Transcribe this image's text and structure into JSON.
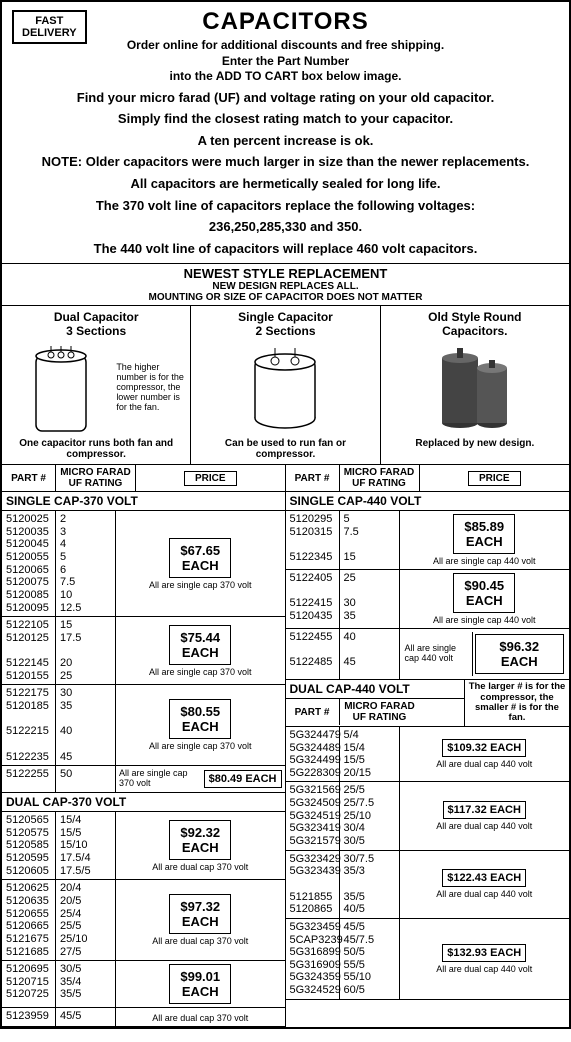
{
  "fast_box": {
    "l1": "FAST",
    "l2": "DELIVERY"
  },
  "title": "CAPACITORS",
  "sub1": "Order online for additional discounts and free shipping.",
  "sub2": "Enter the Part Number",
  "sub3": "into the ADD TO CART box below image.",
  "info1": "Find your micro farad (UF) and voltage rating on your old capacitor.",
  "info2": "Simply find the closest rating match to your capacitor.",
  "info3": "A ten percent increase is ok.",
  "info4": "NOTE: Older capacitors were much larger in size than the newer replacements.",
  "info5": "All capacitors are hermetically sealed for long life.",
  "info6": "The 370 volt line of capacitors replace the following voltages:",
  "info7": "236,250,285,330 and 350.",
  "info8": "The 440 volt line of capacitors will replace 460 volt capacitors.",
  "replace": {
    "t1": "NEWEST STYLE REPLACEMENT",
    "t2": "NEW DESIGN REPLACES ALL.",
    "t3": "MOUNTING OR SIZE OF CAPACITOR DOES NOT MATTER"
  },
  "illus": {
    "dual": {
      "title1": "Dual Capacitor",
      "title2": "3 Sections",
      "note": "The higher number is for the compressor, the lower number is for the fan.",
      "foot": "One capacitor runs both fan and compressor."
    },
    "single": {
      "title1": "Single Capacitor",
      "title2": "2 Sections",
      "foot": "Can be used to run fan or compressor."
    },
    "old": {
      "title1": "Old Style Round",
      "title2": "Capacitors.",
      "foot": "Replaced by new design."
    }
  },
  "headers": {
    "part": "PART #",
    "uf": "MICRO FARAD UF RATING",
    "price": "PRICE"
  },
  "left": {
    "sect1": {
      "title": "SINGLE CAP-370 VOLT",
      "groups": [
        {
          "parts": [
            "5120025",
            "5120035",
            "5120045",
            "5120055",
            "5120065",
            "5120075",
            "5120085",
            "5120095"
          ],
          "ufs": [
            "2",
            "3",
            "4",
            "5",
            "6",
            "7.5",
            "10",
            "12.5"
          ],
          "price": "$67.65",
          "unit": "EACH",
          "note": "All are single cap 370 volt"
        },
        {
          "parts": [
            "5122105",
            "5120125",
            "",
            "5122145",
            "5120155"
          ],
          "ufs": [
            "15",
            "17.5",
            "",
            "20",
            "25"
          ],
          "price": "$75.44",
          "unit": "EACH",
          "note": "All are single cap 370 volt"
        },
        {
          "parts": [
            "5122175",
            "5120185",
            "",
            "5122215",
            "",
            "5122235"
          ],
          "ufs": [
            "30",
            "35",
            "",
            "40",
            "",
            "45"
          ],
          "price": "$80.55",
          "unit": "EACH",
          "note": "All are single cap 370 volt"
        },
        {
          "parts": [
            "5122255"
          ],
          "ufs": [
            "50"
          ],
          "price": "$80.49 EACH",
          "note": "All are single cap 370 volt",
          "inline": true
        }
      ]
    },
    "sect2": {
      "title": "DUAL CAP-370 VOLT",
      "groups": [
        {
          "parts": [
            "5120565",
            "5120575",
            "5120585",
            "5120595",
            "5120605"
          ],
          "ufs": [
            "15/4",
            "15/5",
            "15/10",
            "17.5/4",
            "17.5/5"
          ],
          "price": "$92.32",
          "unit": "EACH",
          "note": "All are dual cap 370 volt"
        },
        {
          "parts": [
            "5120625",
            "5120635",
            "5120655",
            "5120665",
            "5121675",
            "5121685"
          ],
          "ufs": [
            "20/4",
            "20/5",
            "25/4",
            "25/5",
            "25/10",
            "27/5"
          ],
          "price": "$97.32",
          "unit": "EACH",
          "note": "All are dual cap 370 volt"
        },
        {
          "parts": [
            "5120695",
            "5120715",
            "5120725"
          ],
          "ufs": [
            "30/5",
            "35/4",
            "35/5"
          ],
          "price": "$99.01",
          "unit": "EACH",
          "note": ""
        },
        {
          "parts": [
            "5123959"
          ],
          "ufs": [
            "45/5"
          ],
          "price": "",
          "note": "All are dual cap 370 volt",
          "noborder": true
        }
      ]
    }
  },
  "right": {
    "sect1": {
      "title": "SINGLE CAP-440 VOLT",
      "groups": [
        {
          "parts": [
            "5120295",
            "5120315",
            "",
            "5122345"
          ],
          "ufs": [
            "5",
            "7.5",
            "",
            "15"
          ],
          "price": "$85.89",
          "unit": "EACH",
          "note": "All are single cap 440 volt"
        },
        {
          "parts": [
            "5122405",
            "",
            "5122415",
            "5120435"
          ],
          "ufs": [
            "25",
            "",
            "30",
            "35"
          ],
          "price": "$90.45",
          "unit": "EACH",
          "note": "All are single cap 440 volt"
        },
        {
          "parts": [
            "5122455",
            "",
            "5122485"
          ],
          "ufs": [
            "40",
            "",
            "45"
          ],
          "price": "$96.32",
          "unit": "EACH",
          "note": "All are single cap 440 volt",
          "sidenote": true
        }
      ]
    },
    "sect2": {
      "title": "DUAL CAP-440 VOLT",
      "note": "The larger # is for the compressor, the smaller # is for the fan.",
      "groups": [
        {
          "parts": [
            "5G324479",
            "5G324489",
            "5G324499",
            "5G228309"
          ],
          "ufs": [
            "5/4",
            "15/4",
            "15/5",
            "20/15"
          ],
          "price": "$109.32 EACH",
          "note": "All are dual cap 440 volt"
        },
        {
          "parts": [
            "5G321569",
            "5G324509",
            "5G324519",
            "5G323419",
            "5G321579"
          ],
          "ufs": [
            "25/5",
            "25/7.5",
            "25/10",
            "30/4",
            "30/5"
          ],
          "price": "$117.32 EACH",
          "note": "All are dual cap 440 volt"
        },
        {
          "parts": [
            "5G323429",
            "5G323439",
            "",
            "5121855",
            "5120865"
          ],
          "ufs": [
            "30/7.5",
            "35/3",
            "",
            "35/5",
            "40/5"
          ],
          "price": "$122.43 EACH",
          "note": "All are dual cap 440 volt"
        },
        {
          "parts": [
            "5G323459",
            "5CAP3239",
            "5G316899",
            "5G316909",
            "5G324359",
            "5G324529"
          ],
          "ufs": [
            "45/5",
            "45/7.5",
            "50/5",
            "55/5",
            "55/10",
            "60/5"
          ],
          "price": "$132.93 EACH",
          "note": "All are dual cap 440 volt"
        }
      ]
    }
  }
}
